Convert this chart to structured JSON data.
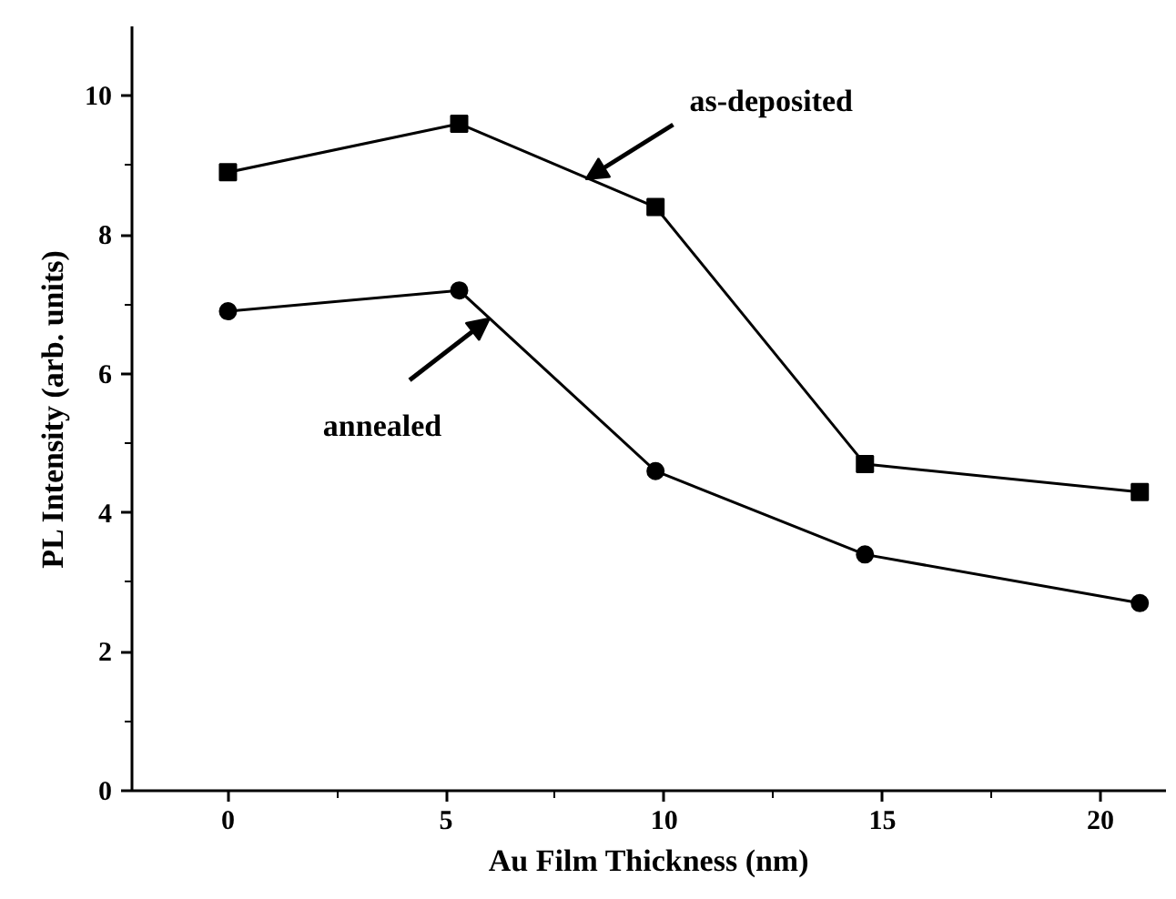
{
  "chart_data": {
    "type": "line",
    "xlabel": "Au Film Thickness (nm)",
    "ylabel": "PL Intensity (arb. units)",
    "x": [
      0,
      5.3,
      9.8,
      14.6,
      20.9
    ],
    "series": [
      {
        "color": "#000000",
        "marker": "square",
        "values": [
          8.9,
          9.6,
          8.4,
          4.7,
          4.3
        ]
      },
      {
        "color": "#000000",
        "marker": "circle",
        "values": [
          6.9,
          7.2,
          4.6,
          3.4,
          2.7
        ]
      }
    ],
    "annotations": [
      {
        "text": "as-deposited",
        "x": 8.2,
        "y": 8.8
      },
      {
        "text": "annealed",
        "x": 6.0,
        "y": 6.8
      }
    ],
    "xlim": [
      -2.2,
      21.5
    ],
    "xticks": [
      0,
      5,
      10,
      15,
      20
    ],
    "ylim": [
      0,
      11
    ],
    "yticks": [
      0,
      2,
      4,
      6,
      8,
      10
    ],
    "grid": false,
    "line_style": "solid"
  }
}
